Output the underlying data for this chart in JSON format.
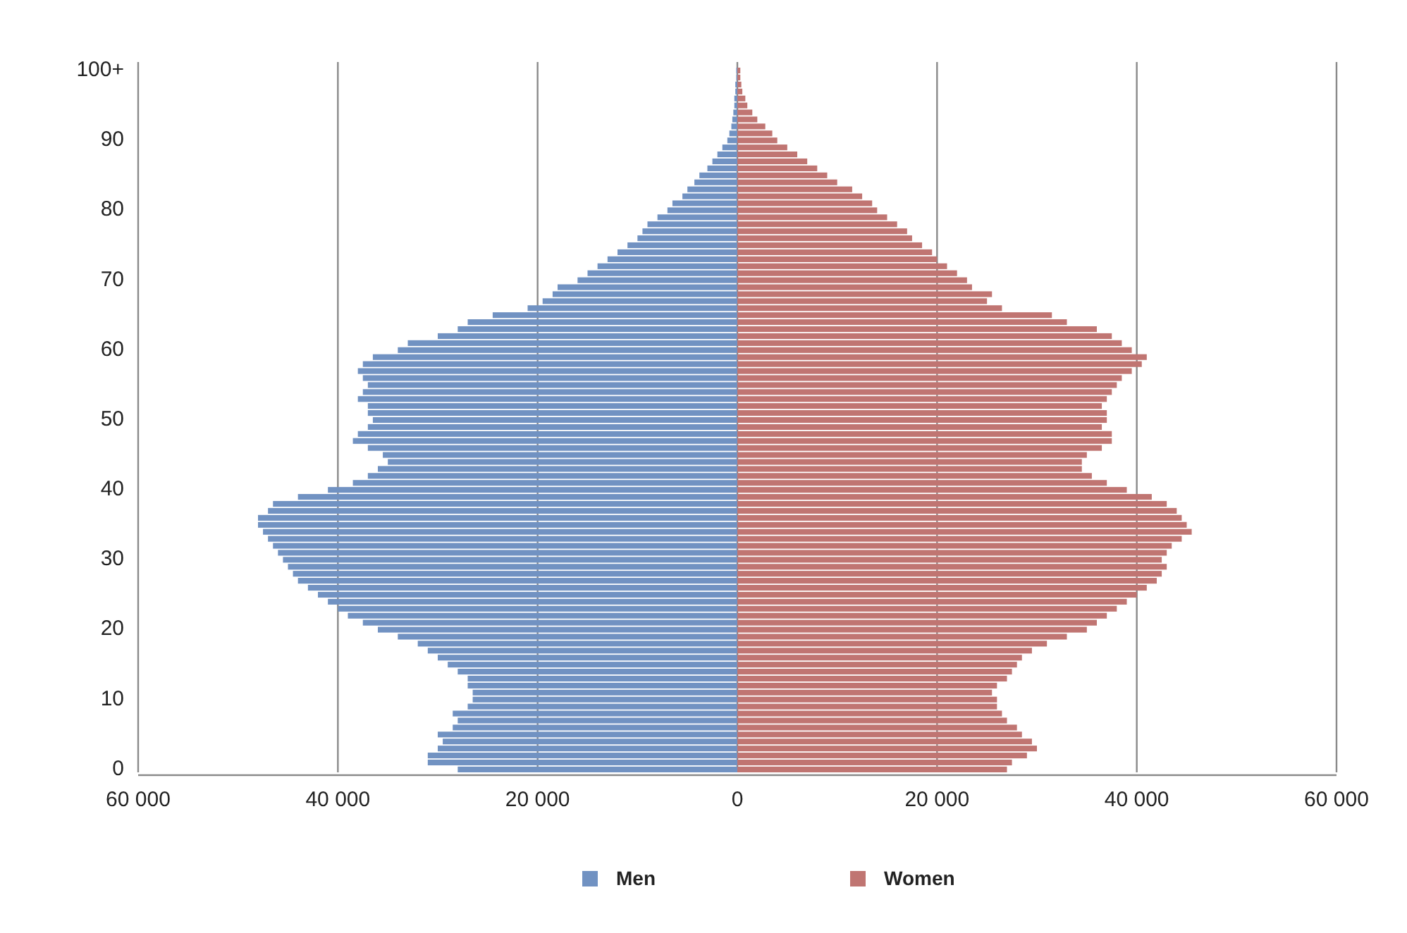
{
  "chart_data": {
    "type": "bar",
    "orientation": "horizontal",
    "stacked": true,
    "grid": "x",
    "legend": "bottom",
    "categories": [
      "100+",
      null,
      null,
      null,
      null,
      null,
      null,
      null,
      null,
      null,
      "90",
      null,
      null,
      null,
      null,
      null,
      null,
      null,
      null,
      null,
      "80",
      null,
      null,
      null,
      null,
      null,
      null,
      null,
      null,
      null,
      "70",
      null,
      null,
      null,
      null,
      null,
      null,
      null,
      null,
      null,
      "60",
      null,
      null,
      null,
      null,
      null,
      null,
      null,
      null,
      null,
      "50",
      null,
      null,
      null,
      null,
      null,
      null,
      null,
      null,
      null,
      "40",
      null,
      null,
      null,
      null,
      null,
      null,
      null,
      null,
      null,
      "30",
      null,
      null,
      null,
      null,
      null,
      null,
      null,
      null,
      null,
      "20",
      null,
      null,
      null,
      null,
      null,
      null,
      null,
      null,
      null,
      "10",
      null,
      null,
      null,
      null,
      null,
      null,
      null,
      null,
      null,
      "0"
    ],
    "xlim": [
      -60000,
      60000
    ],
    "xticks": [
      {
        "value": -60000,
        "label": "60 000"
      },
      {
        "value": -40000,
        "label": "40 000"
      },
      {
        "value": -20000,
        "label": "20 000"
      },
      0,
      {
        "value": 20000,
        "label": "20 000"
      },
      {
        "value": 40000,
        "label": "40 000"
      },
      {
        "value": 60000,
        "label": "60 000"
      }
    ],
    "series": [
      {
        "name": "Men",
        "color": "#7192c2",
        "values": [
          -100,
          -100,
          -200,
          -200,
          -300,
          -300,
          -400,
          -500,
          -600,
          -800,
          -1000,
          -1500,
          -2000,
          -2500,
          -3000,
          -3800,
          -4300,
          -5000,
          -5500,
          -6500,
          -7000,
          -8000,
          -9000,
          -9500,
          -10000,
          -11000,
          -12000,
          -13000,
          -14000,
          -15000,
          -16000,
          -18000,
          -18500,
          -19500,
          -21000,
          -24500,
          -27000,
          -28000,
          -30000,
          -33000,
          -34000,
          -36500,
          -37500,
          -38000,
          -37500,
          -37000,
          -37500,
          -38000,
          -37000,
          -37000,
          -36500,
          -37000,
          -38000,
          -38500,
          -37000,
          -35500,
          -35000,
          -36000,
          -37000,
          -38500,
          -41000,
          -44000,
          -46500,
          -47000,
          -48000,
          -48000,
          -47500,
          -47000,
          -46500,
          -46000,
          -45500,
          -45000,
          -44500,
          -44000,
          -43000,
          -42000,
          -41000,
          -40000,
          -39000,
          -37500,
          -36000,
          -34000,
          -32000,
          -31000,
          -30000,
          -29000,
          -28000,
          -27000,
          -27000,
          -26500,
          -26500,
          -27000,
          -28500,
          -28000,
          -28500,
          -30000,
          -29500,
          -30000,
          -31000,
          -31000,
          -28000
        ]
      },
      {
        "name": "Women",
        "color": "#c07572",
        "values": [
          300,
          300,
          400,
          500,
          800,
          1000,
          1500,
          2000,
          2800,
          3500,
          4000,
          5000,
          6000,
          7000,
          8000,
          9000,
          10000,
          11500,
          12500,
          13500,
          14000,
          15000,
          16000,
          17000,
          17500,
          18500,
          19500,
          20000,
          21000,
          22000,
          23000,
          23500,
          25500,
          25000,
          26500,
          31500,
          33000,
          36000,
          37500,
          38500,
          39500,
          41000,
          40500,
          39500,
          38500,
          38000,
          37500,
          37000,
          36500,
          37000,
          37000,
          36500,
          37500,
          37500,
          36500,
          35000,
          34500,
          34500,
          35500,
          37000,
          39000,
          41500,
          43000,
          44000,
          44500,
          45000,
          45500,
          44500,
          43500,
          43000,
          42500,
          43000,
          42500,
          42000,
          41000,
          40000,
          39000,
          38000,
          37000,
          36000,
          35000,
          33000,
          31000,
          29500,
          28500,
          28000,
          27500,
          27000,
          26000,
          25500,
          26000,
          26000,
          26500,
          27000,
          28000,
          28500,
          29500,
          30000,
          29000,
          27500,
          27000
        ]
      }
    ]
  }
}
